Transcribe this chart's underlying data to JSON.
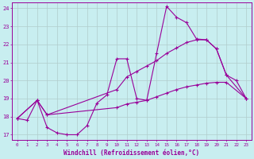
{
  "xlabel": "Windchill (Refroidissement éolien,°C)",
  "background_color": "#c8eef0",
  "grid_color": "#b0cccc",
  "line_color": "#990099",
  "xlim": [
    -0.5,
    23.5
  ],
  "ylim": [
    16.7,
    24.3
  ],
  "xticks": [
    0,
    1,
    2,
    3,
    4,
    5,
    6,
    7,
    8,
    9,
    10,
    11,
    12,
    13,
    14,
    15,
    16,
    17,
    18,
    19,
    20,
    21,
    22,
    23
  ],
  "yticks": [
    17,
    18,
    19,
    20,
    21,
    22,
    23,
    24
  ],
  "line1_x": [
    0,
    1,
    2,
    3,
    4,
    5,
    6,
    7,
    8,
    9,
    10,
    11,
    12,
    13,
    14,
    15,
    16,
    17,
    18,
    19,
    20,
    21,
    22,
    23
  ],
  "line1_y": [
    17.9,
    17.8,
    18.9,
    17.4,
    17.1,
    17.0,
    17.0,
    17.5,
    18.75,
    19.2,
    21.2,
    21.2,
    19.0,
    18.9,
    21.5,
    24.1,
    23.5,
    23.2,
    22.3,
    22.25,
    21.75,
    20.3,
    20.0,
    19.0
  ],
  "line2_x": [
    0,
    2,
    3,
    10,
    11,
    12,
    13,
    14,
    15,
    16,
    17,
    18,
    19,
    20,
    21,
    23
  ],
  "line2_y": [
    17.9,
    18.9,
    18.1,
    19.5,
    20.2,
    20.5,
    20.8,
    21.1,
    21.5,
    21.8,
    22.1,
    22.25,
    22.25,
    21.75,
    20.3,
    19.0
  ],
  "line3_x": [
    0,
    2,
    3,
    10,
    11,
    12,
    13,
    14,
    15,
    16,
    17,
    18,
    19,
    20,
    21,
    23
  ],
  "line3_y": [
    17.9,
    18.9,
    18.1,
    18.5,
    18.7,
    18.8,
    18.9,
    19.1,
    19.3,
    19.5,
    19.65,
    19.75,
    19.85,
    19.9,
    19.9,
    19.0
  ]
}
